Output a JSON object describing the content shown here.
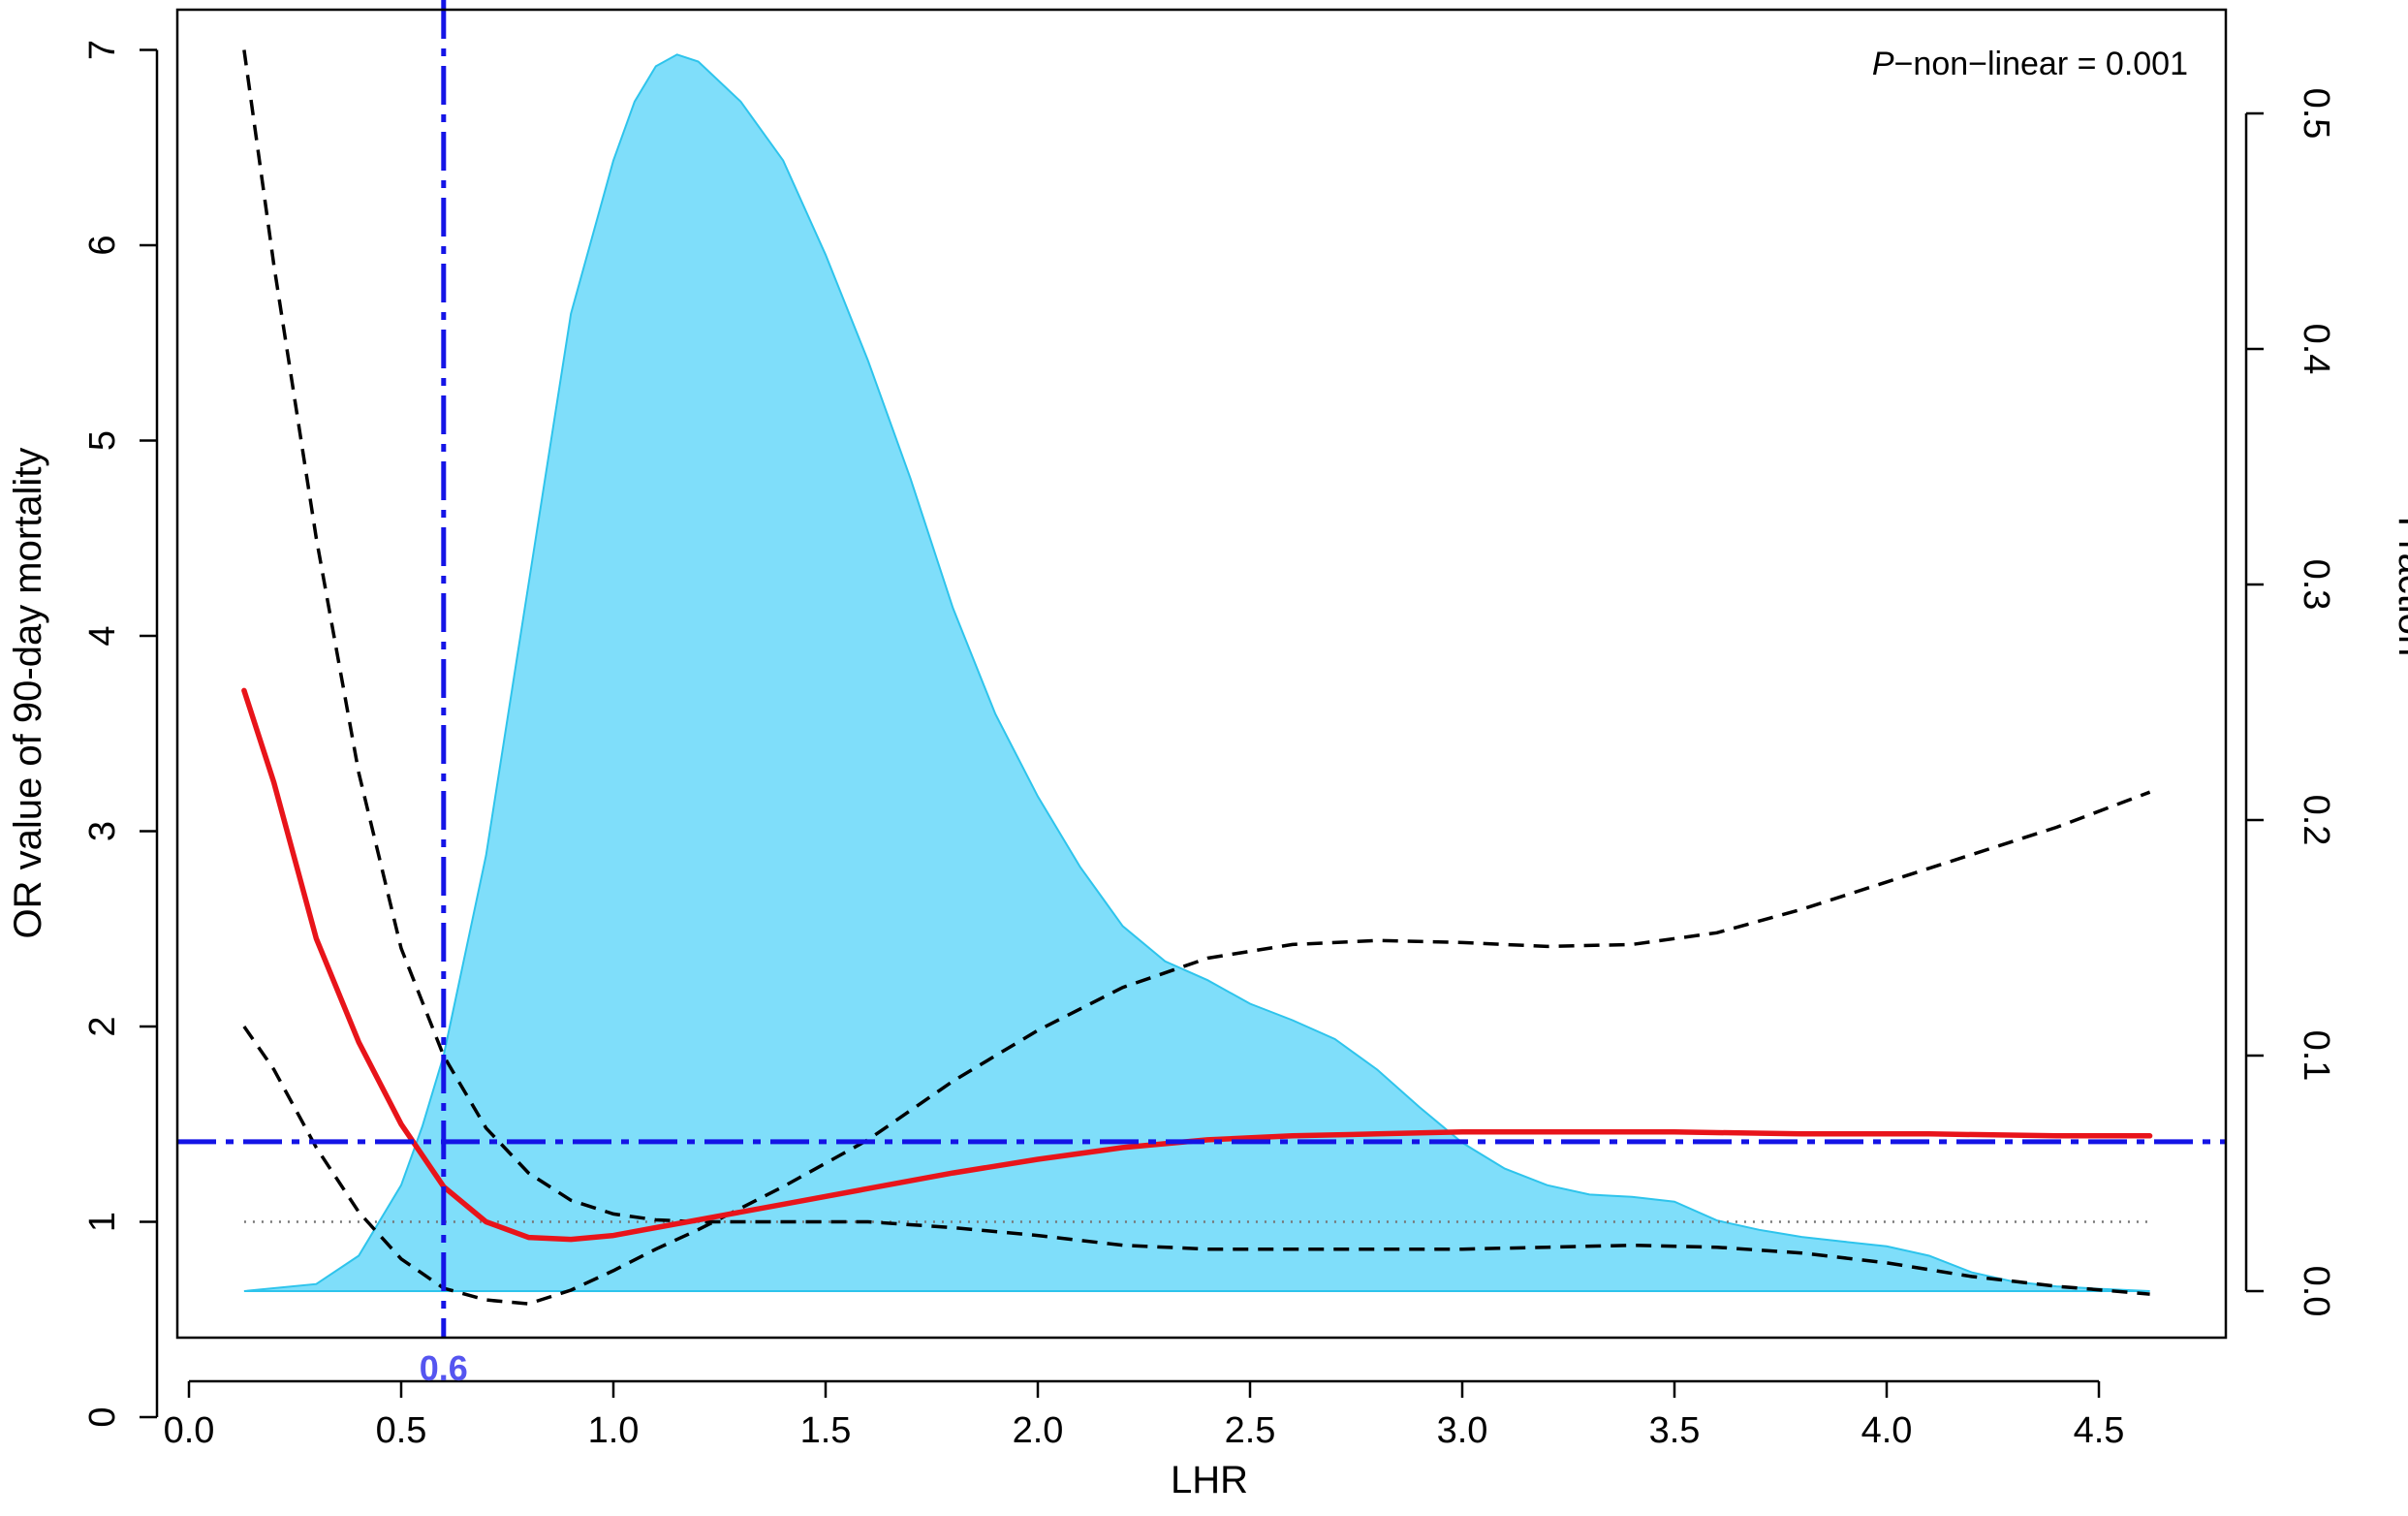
{
  "chart_data": {
    "type": "line",
    "title": "",
    "xlabel": "LHR",
    "ylabel": "OR value of 90-day mortality",
    "y2label": "Fraction",
    "xlim": [
      0,
      4.6
    ],
    "ylim": [
      0,
      7
    ],
    "y2lim": [
      0,
      0.5
    ],
    "x_ticks": [
      "0.0",
      "0.5",
      "1.0",
      "1.5",
      "2.0",
      "2.5",
      "3.0",
      "3.5",
      "4.0",
      "4.5"
    ],
    "y_ticks": [
      "0",
      "1",
      "2",
      "3",
      "4",
      "5",
      "6",
      "7"
    ],
    "y2_ticks": [
      "0.0",
      "0.1",
      "0.2",
      "0.3",
      "0.4",
      "0.5"
    ],
    "grid": false,
    "annotation": {
      "prefix": "P",
      "text": "−non−linear = 0.001"
    },
    "cutoff_label": "0.6",
    "cutoff_x": 0.6,
    "hline_y": 1.41,
    "reference_y": 1,
    "colors": {
      "density_fill": "#7fdefa",
      "density_edge": "#2ec4ec",
      "or_line": "#e8141a",
      "ci_line": "#000000",
      "cutoff_line": "#1414e6",
      "cutoff_label": "#5555f0",
      "reference_line": "#777777"
    },
    "series": [
      {
        "role": "or",
        "x": [
          0.13,
          0.2,
          0.3,
          0.4,
          0.5,
          0.6,
          0.7,
          0.8,
          0.9,
          1.0,
          1.1,
          1.2,
          1.4,
          1.6,
          1.8,
          2.0,
          2.2,
          2.4,
          2.6,
          2.8,
          3.0,
          3.2,
          3.5,
          3.8,
          4.1,
          4.4,
          4.62
        ],
        "y": [
          3.72,
          3.25,
          2.45,
          1.92,
          1.5,
          1.18,
          1.0,
          0.92,
          0.91,
          0.93,
          0.97,
          1.01,
          1.09,
          1.17,
          1.25,
          1.32,
          1.38,
          1.42,
          1.44,
          1.45,
          1.46,
          1.46,
          1.46,
          1.45,
          1.45,
          1.44,
          1.44
        ]
      },
      {
        "role": "ci-upper",
        "x": [
          0.13,
          0.2,
          0.3,
          0.4,
          0.5,
          0.6,
          0.7,
          0.8,
          0.9,
          1.0,
          1.1,
          1.2,
          1.4,
          1.6,
          1.8,
          2.0,
          2.2,
          2.4,
          2.6,
          2.8,
          3.0,
          3.2,
          3.4,
          3.6,
          3.8,
          4.0,
          4.2,
          4.4,
          4.62
        ],
        "y": [
          7.0,
          5.9,
          4.5,
          3.3,
          2.4,
          1.85,
          1.48,
          1.25,
          1.11,
          1.04,
          1.01,
          1.0,
          1.0,
          1.0,
          0.97,
          0.93,
          0.88,
          0.86,
          0.86,
          0.86,
          0.86,
          0.87,
          0.88,
          0.87,
          0.84,
          0.79,
          0.72,
          0.67,
          0.63
        ]
      },
      {
        "role": "ci-lower",
        "x": [
          0.13,
          0.2,
          0.3,
          0.4,
          0.5,
          0.6,
          0.7,
          0.8,
          0.9,
          1.0,
          1.1,
          1.2,
          1.4,
          1.6,
          1.8,
          2.0,
          2.2,
          2.4,
          2.6,
          2.8,
          3.0,
          3.2,
          3.4,
          3.6,
          3.8,
          4.0,
          4.2,
          4.4,
          4.62
        ],
        "y": [
          2.0,
          1.78,
          1.38,
          1.05,
          0.81,
          0.66,
          0.6,
          0.58,
          0.65,
          0.75,
          0.86,
          0.96,
          1.18,
          1.42,
          1.72,
          1.98,
          2.2,
          2.35,
          2.42,
          2.44,
          2.43,
          2.41,
          2.42,
          2.48,
          2.6,
          2.74,
          2.88,
          3.02,
          3.2
        ]
      },
      {
        "role": "density",
        "axis": "right",
        "x": [
          0.13,
          0.3,
          0.4,
          0.5,
          0.55,
          0.6,
          0.7,
          0.8,
          0.9,
          1.0,
          1.05,
          1.1,
          1.15,
          1.2,
          1.3,
          1.4,
          1.5,
          1.6,
          1.7,
          1.8,
          1.9,
          2.0,
          2.1,
          2.2,
          2.3,
          2.4,
          2.5,
          2.6,
          2.7,
          2.8,
          2.9,
          3.0,
          3.1,
          3.2,
          3.3,
          3.4,
          3.5,
          3.6,
          3.7,
          3.8,
          3.9,
          4.0,
          4.1,
          4.2,
          4.3,
          4.4,
          4.5,
          4.62
        ],
        "y": [
          0.0,
          0.003,
          0.015,
          0.045,
          0.07,
          0.1,
          0.185,
          0.3,
          0.415,
          0.48,
          0.505,
          0.52,
          0.525,
          0.522,
          0.505,
          0.48,
          0.44,
          0.395,
          0.345,
          0.29,
          0.245,
          0.21,
          0.18,
          0.155,
          0.14,
          0.132,
          0.122,
          0.115,
          0.107,
          0.094,
          0.078,
          0.063,
          0.052,
          0.045,
          0.041,
          0.04,
          0.038,
          0.03,
          0.026,
          0.023,
          0.021,
          0.019,
          0.015,
          0.008,
          0.004,
          0.002,
          0.001,
          0.0
        ]
      }
    ]
  }
}
